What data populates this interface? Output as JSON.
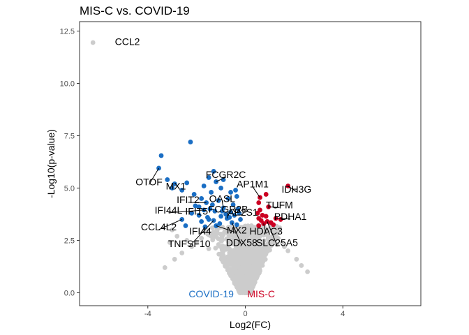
{
  "chart_data": {
    "type": "scatter",
    "title": "MIS-C vs. COVID-19",
    "xlabel": "Log2(FC)",
    "ylabel": "-Log10(p-value)",
    "xlim": [
      -6.8,
      7.2
    ],
    "ylim": [
      -0.62,
      12.95
    ],
    "x_ticks": [
      -4,
      0,
      4
    ],
    "x_tick_labels": [
      "-4",
      "0",
      "4"
    ],
    "y_ticks": [
      0,
      2.5,
      5,
      7.5,
      10,
      12.5
    ],
    "y_tick_labels": [
      "0.0",
      "2.5",
      "5.0",
      "7.5",
      "10.0",
      "12.5"
    ],
    "grid": false,
    "colors": {
      "up": "#cc0022",
      "down": "#1a6ec4",
      "ns": "#cccccc",
      "frame": "#333333"
    },
    "group_labels": [
      {
        "text": "COVID-19",
        "x": -1.4,
        "y": -0.05,
        "color": "#1a6ec4"
      },
      {
        "text": "MIS-C",
        "x": 0.65,
        "y": -0.05,
        "color": "#cc0022"
      }
    ],
    "down_points": [
      [
        -3.45,
        6.55
      ],
      [
        -2.25,
        7.2
      ],
      [
        -3.55,
        5.95
      ],
      [
        -3.2,
        5.4
      ],
      [
        -2.9,
        5.2
      ],
      [
        -2.4,
        5.25
      ],
      [
        -3.0,
        5.0
      ],
      [
        -2.6,
        4.9
      ],
      [
        -1.3,
        5.8
      ],
      [
        -1.5,
        5.5
      ],
      [
        -1.2,
        5.3
      ],
      [
        -1.7,
        5.1
      ],
      [
        -0.9,
        5.4
      ],
      [
        -2.1,
        4.7
      ],
      [
        -1.0,
        5.0
      ],
      [
        -1.4,
        4.8
      ],
      [
        -0.6,
        4.8
      ],
      [
        -0.4,
        4.9
      ],
      [
        -1.8,
        4.5
      ],
      [
        -1.6,
        4.3
      ],
      [
        -1.1,
        4.4
      ],
      [
        -0.5,
        4.2
      ],
      [
        -0.35,
        4.6
      ],
      [
        -2.05,
        4.15
      ],
      [
        -1.7,
        3.95
      ],
      [
        -1.45,
        4.0
      ],
      [
        -1.25,
        3.9
      ],
      [
        -0.9,
        4.05
      ],
      [
        -0.6,
        3.85
      ],
      [
        -0.3,
        4.0
      ],
      [
        -2.2,
        3.8
      ],
      [
        -1.9,
        3.7
      ],
      [
        -1.55,
        3.6
      ],
      [
        -1.0,
        3.65
      ],
      [
        -0.75,
        3.55
      ],
      [
        -0.45,
        3.7
      ],
      [
        -0.2,
        3.5
      ],
      [
        -1.3,
        3.45
      ],
      [
        -2.6,
        3.5
      ],
      [
        -1.8,
        3.4
      ],
      [
        -0.55,
        3.35
      ],
      [
        -1.05,
        3.3
      ],
      [
        -0.35,
        3.25
      ],
      [
        -1.5,
        3.5
      ],
      [
        -0.8,
        3.75
      ],
      [
        -2.45,
        3.2
      ],
      [
        -1.65,
        3.15
      ],
      [
        -1.2,
        3.2
      ],
      [
        -0.65,
        3.6
      ],
      [
        -0.25,
        3.8
      ],
      [
        -1.9,
        4.1
      ],
      [
        -1.35,
        4.2
      ],
      [
        -0.7,
        4.5
      ],
      [
        -0.95,
        3.9
      ]
    ],
    "up_points": [
      [
        1.75,
        5.1
      ],
      [
        0.85,
        4.7
      ],
      [
        0.6,
        4.55
      ],
      [
        0.55,
        4.3
      ],
      [
        0.95,
        4.1
      ],
      [
        0.6,
        3.95
      ],
      [
        0.5,
        3.8
      ],
      [
        0.7,
        3.7
      ],
      [
        0.85,
        3.65
      ],
      [
        0.55,
        3.55
      ],
      [
        1.25,
        3.55
      ],
      [
        1.45,
        3.5
      ],
      [
        0.65,
        3.45
      ],
      [
        0.9,
        3.4
      ],
      [
        1.05,
        3.35
      ],
      [
        0.75,
        3.3
      ],
      [
        0.55,
        3.2
      ],
      [
        1.15,
        3.25
      ]
    ],
    "ns_points": [
      [
        -6.25,
        11.95
      ],
      [
        -3.0,
        3.0
      ],
      [
        -2.8,
        2.7
      ],
      [
        -3.1,
        2.4
      ],
      [
        -2.4,
        2.5
      ],
      [
        -2.2,
        2.2
      ],
      [
        -2.0,
        2.4
      ],
      [
        -1.8,
        2.6
      ],
      [
        -1.6,
        2.9
      ],
      [
        -1.4,
        2.7
      ],
      [
        -1.2,
        2.9
      ],
      [
        -1.0,
        2.8
      ],
      [
        -0.8,
        3.0
      ],
      [
        -0.6,
        2.9
      ],
      [
        -0.45,
        3.0
      ],
      [
        -0.3,
        3.1
      ],
      [
        1.1,
        3.0
      ],
      [
        1.2,
        2.8
      ],
      [
        1.35,
        2.6
      ],
      [
        1.5,
        2.4
      ],
      [
        1.6,
        2.2
      ],
      [
        1.75,
        2.0
      ],
      [
        1.3,
        2.3
      ],
      [
        1.05,
        2.5
      ],
      [
        0.35,
        3.0
      ],
      [
        0.25,
        3.2
      ],
      [
        2.1,
        1.6
      ],
      [
        2.3,
        1.3
      ],
      [
        -2.6,
        1.9
      ],
      [
        -2.9,
        1.6
      ],
      [
        -3.3,
        1.2
      ],
      [
        2.55,
        1.0
      ],
      [
        -1.5,
        2.1
      ],
      [
        -1.1,
        2.3
      ],
      [
        0.9,
        2.9
      ],
      [
        -0.7,
        2.6
      ]
    ],
    "labels": [
      {
        "text": "CCL2",
        "x": -6.25,
        "y": 11.95,
        "tx": -5.35,
        "ty": 12.0,
        "anchor": "start",
        "line": false
      },
      {
        "text": "OTOF",
        "x": -3.55,
        "y": 5.95,
        "tx": -3.95,
        "ty": 5.3,
        "anchor": "middle",
        "line": true
      },
      {
        "text": "MX1",
        "x": -2.4,
        "y": 5.25,
        "tx": -2.85,
        "ty": 5.1,
        "anchor": "middle",
        "line": false
      },
      {
        "text": "FCGR2C",
        "x": -1.2,
        "y": 5.3,
        "tx": -0.8,
        "ty": 5.65,
        "anchor": "middle",
        "line": true
      },
      {
        "text": "IFIT2",
        "x": -1.6,
        "y": 4.3,
        "tx": -2.35,
        "ty": 4.45,
        "anchor": "middle",
        "line": true
      },
      {
        "text": "OASL",
        "x": -0.9,
        "y": 4.05,
        "tx": -0.95,
        "ty": 4.5,
        "anchor": "middle",
        "line": true
      },
      {
        "text": "FCGR2B",
        "x": -0.75,
        "y": 3.55,
        "tx": -0.7,
        "ty": 4.0,
        "anchor": "middle",
        "line": true
      },
      {
        "text": "IFI44L",
        "x": -1.7,
        "y": 3.95,
        "tx": -3.15,
        "ty": 3.95,
        "anchor": "middle",
        "line": true
      },
      {
        "text": "IFIT5",
        "x": -1.8,
        "y": 3.7,
        "tx": -2.0,
        "ty": 3.9,
        "anchor": "middle",
        "line": true
      },
      {
        "text": "AP2S1",
        "x": -0.45,
        "y": 3.7,
        "tx": -0.1,
        "ty": 3.85,
        "anchor": "middle",
        "line": true
      },
      {
        "text": "CCL4L2",
        "x": -2.6,
        "y": 3.5,
        "tx": -3.55,
        "ty": 3.15,
        "anchor": "middle",
        "line": true
      },
      {
        "text": "IFI44",
        "x": -1.65,
        "y": 3.15,
        "tx": -1.85,
        "ty": 2.95,
        "anchor": "middle",
        "line": true
      },
      {
        "text": "MX2",
        "x": -1.2,
        "y": 3.2,
        "tx": -0.35,
        "ty": 3.0,
        "anchor": "middle",
        "line": true
      },
      {
        "text": "TNFSF10",
        "x": -1.3,
        "y": 3.45,
        "tx": -2.3,
        "ty": 2.35,
        "anchor": "middle",
        "line": true
      },
      {
        "text": "DDX58",
        "x": -0.55,
        "y": 3.35,
        "tx": -0.15,
        "ty": 2.4,
        "anchor": "middle",
        "line": true
      },
      {
        "text": "AP1M1",
        "x": 0.6,
        "y": 4.55,
        "tx": 0.3,
        "ty": 5.2,
        "anchor": "middle",
        "line": true
      },
      {
        "text": "IDH3G",
        "x": 1.75,
        "y": 5.1,
        "tx": 2.1,
        "ty": 4.95,
        "anchor": "middle",
        "line": true
      },
      {
        "text": "TUFM",
        "x": 0.95,
        "y": 4.1,
        "tx": 1.4,
        "ty": 4.2,
        "anchor": "middle",
        "line": true
      },
      {
        "text": "PDHA1",
        "x": 1.25,
        "y": 3.55,
        "tx": 1.85,
        "ty": 3.65,
        "anchor": "middle",
        "line": true
      },
      {
        "text": "HDAC3",
        "x": 0.75,
        "y": 3.3,
        "tx": 0.85,
        "ty": 2.95,
        "anchor": "middle",
        "line": true
      },
      {
        "text": "SLC25A5",
        "x": 0.9,
        "y": 3.4,
        "tx": 1.3,
        "ty": 2.4,
        "anchor": "middle",
        "line": true
      }
    ]
  }
}
